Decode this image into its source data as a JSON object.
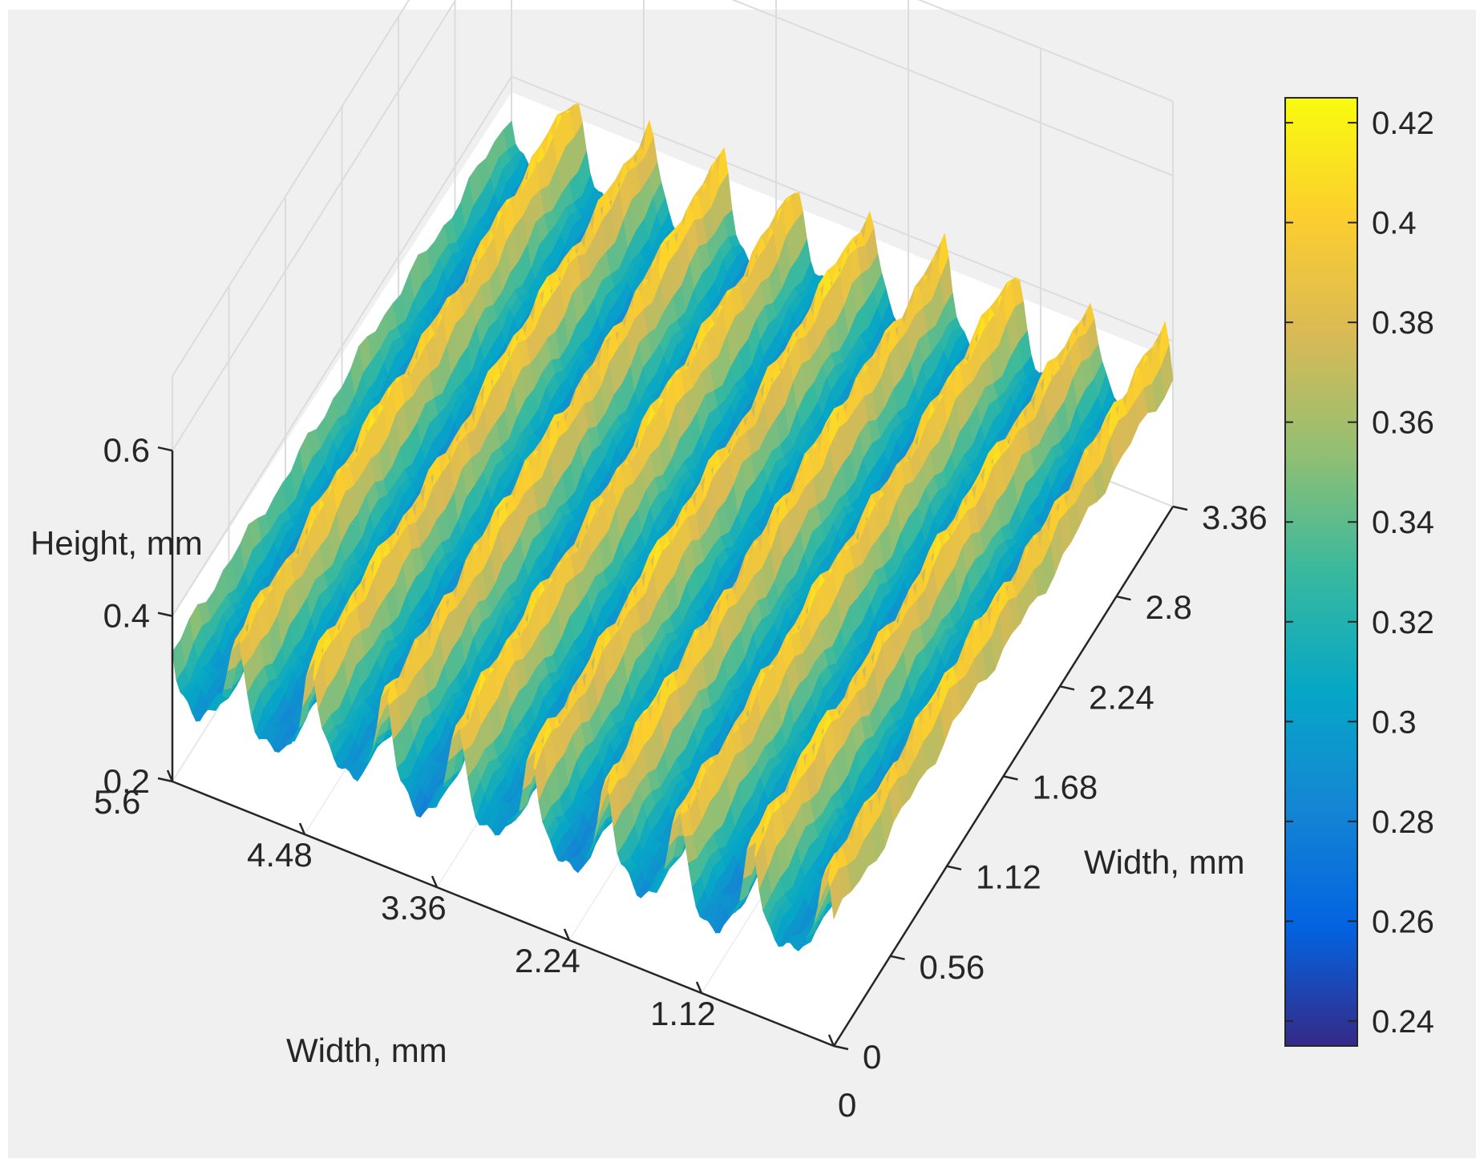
{
  "chart_data": {
    "type": "surface",
    "title": "",
    "zlabel": "Height, mm",
    "xlabel": "Width, mm",
    "ylabel": "Width, mm",
    "x_ticks": [
      "5.6",
      "4.48",
      "3.36",
      "2.24",
      "1.12",
      "0"
    ],
    "x_tick_values": [
      5.6,
      4.48,
      3.36,
      2.24,
      1.12,
      0
    ],
    "y_ticks": [
      "0",
      "0.56",
      "1.12",
      "1.68",
      "2.24",
      "2.8",
      "3.36"
    ],
    "y_tick_values": [
      0,
      0.56,
      1.12,
      1.68,
      2.24,
      2.8,
      3.36
    ],
    "z_ticks": [
      "0.2",
      "0.4",
      "0.6"
    ],
    "z_tick_values": [
      0.2,
      0.4,
      0.6
    ],
    "xlim": [
      0,
      5.6
    ],
    "ylim": [
      0,
      3.36
    ],
    "zlim": [
      0.2,
      0.6
    ],
    "grid": true,
    "surface": {
      "ridges": 9,
      "ridge_orientation": "along y",
      "height_min": 0.24,
      "height_max": 0.42
    },
    "colorbar": {
      "colormap": "parula",
      "ticks": [
        "0.42",
        "0.4",
        "0.38",
        "0.36",
        "0.34",
        "0.32",
        "0.3",
        "0.28",
        "0.26",
        "0.24"
      ],
      "tick_values": [
        0.42,
        0.4,
        0.38,
        0.36,
        0.34,
        0.32,
        0.3,
        0.28,
        0.26,
        0.24
      ],
      "range": [
        0.235,
        0.425
      ],
      "placement": "right"
    }
  },
  "colors": {
    "background": "#f0f0f0",
    "axes_bg": "#ffffff",
    "grid": "#dcdcdc",
    "axis": "#262626"
  }
}
